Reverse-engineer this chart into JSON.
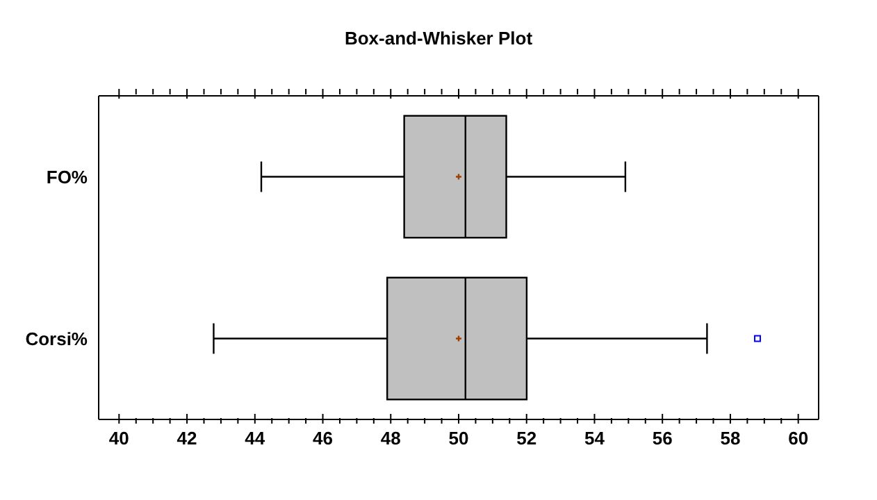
{
  "chart_data": {
    "type": "box",
    "title": "Box-and-Whisker Plot",
    "orientation": "horizontal",
    "categories": [
      "FO%",
      "Corsi%"
    ],
    "color": "#c0c0c0",
    "boxes": [
      {
        "low": 44.2,
        "q1": 48.4,
        "median": 50.2,
        "q3": 51.4,
        "high": 54.9,
        "mean": 50.0
      },
      {
        "low": 42.8,
        "q1": 47.9,
        "median": 50.2,
        "q3": 52.0,
        "high": 57.3,
        "mean": 50.0,
        "outliers": [
          58.8
        ]
      }
    ],
    "xlim": [
      39.4,
      60.6
    ],
    "xticks": [
      40,
      {
        "value": 40.5,
        "label": null
      },
      {
        "value": 41,
        "label": null
      },
      {
        "value": 41.5,
        "label": null
      },
      42,
      {
        "value": 42.5,
        "label": null
      },
      {
        "value": 43,
        "label": null
      },
      {
        "value": 43.5,
        "label": null
      },
      44,
      {
        "value": 44.5,
        "label": null
      },
      {
        "value": 45,
        "label": null
      },
      {
        "value": 45.5,
        "label": null
      },
      46,
      {
        "value": 46.5,
        "label": null
      },
      {
        "value": 47,
        "label": null
      },
      {
        "value": 47.5,
        "label": null
      },
      48,
      {
        "value": 48.5,
        "label": null
      },
      {
        "value": 49,
        "label": null
      },
      {
        "value": 49.5,
        "label": null
      },
      50,
      {
        "value": 50.5,
        "label": null
      },
      {
        "value": 51,
        "label": null
      },
      {
        "value": 51.5,
        "label": null
      },
      52,
      {
        "value": 52.5,
        "label": null
      },
      {
        "value": 53,
        "label": null
      },
      {
        "value": 53.5,
        "label": null
      },
      54,
      {
        "value": 54.5,
        "label": null
      },
      {
        "value": 55,
        "label": null
      },
      {
        "value": 55.5,
        "label": null
      },
      56,
      {
        "value": 56.5,
        "label": null
      },
      {
        "value": 57,
        "label": null
      },
      {
        "value": 57.5,
        "label": null
      },
      58,
      {
        "value": 58.5,
        "label": null
      },
      {
        "value": 59,
        "label": null
      },
      {
        "value": 59.5,
        "label": null
      },
      60
    ]
  }
}
